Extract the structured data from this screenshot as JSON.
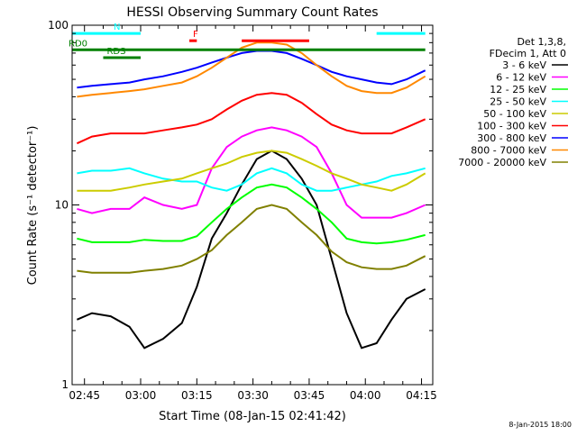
{
  "chart_data": {
    "type": "line",
    "title": "HESSI Observing Summary Count Rates",
    "xlabel": "Start Time (08-Jan-15 02:41:42)",
    "ylabel": "Count Rate (s⁻¹ detector⁻¹)",
    "y_scale": "log",
    "ylim": [
      1,
      100
    ],
    "xlim": [
      "02:41:42",
      "04:18:00"
    ],
    "x_ticks": [
      "02:45",
      "03:00",
      "03:15",
      "03:30",
      "03:45",
      "04:00",
      "04:15"
    ],
    "y_ticks": [
      "1",
      "10",
      "100"
    ],
    "legend_position": "top-right",
    "legend_header": [
      "Det 1,3,8,",
      "FDecim 1, Att 0"
    ],
    "grid": false,
    "series": [
      {
        "name": "3 - 6 keV",
        "color": "#000000",
        "x": [
          "02:43",
          "02:47",
          "02:52",
          "02:57",
          "03:01",
          "03:06",
          "03:11",
          "03:15",
          "03:19",
          "03:23",
          "03:27",
          "03:31",
          "03:35",
          "03:39",
          "03:43",
          "03:47",
          "03:51",
          "03:55",
          "03:59",
          "04:03",
          "04:07",
          "04:11",
          "04:16"
        ],
        "values": [
          2.3,
          2.5,
          2.4,
          2.1,
          1.6,
          1.8,
          2.2,
          3.5,
          6.5,
          9,
          13,
          18,
          20,
          18,
          14,
          10,
          5,
          2.5,
          1.6,
          1.7,
          2.3,
          3,
          3.4
        ]
      },
      {
        "name": "6 - 12 keV",
        "color": "#ff00ff",
        "x": [
          "02:43",
          "02:47",
          "02:52",
          "02:57",
          "03:01",
          "03:06",
          "03:11",
          "03:15",
          "03:19",
          "03:23",
          "03:27",
          "03:31",
          "03:35",
          "03:39",
          "03:43",
          "03:47",
          "03:51",
          "03:55",
          "03:59",
          "04:03",
          "04:07",
          "04:11",
          "04:16"
        ],
        "values": [
          9.5,
          9,
          9.5,
          9.5,
          11,
          10,
          9.5,
          10,
          16,
          21,
          24,
          26,
          27,
          26,
          24,
          21,
          15,
          10,
          8.5,
          8.5,
          8.5,
          9,
          10
        ]
      },
      {
        "name": "12 - 25 keV",
        "color": "#00ff00",
        "x": [
          "02:43",
          "02:47",
          "02:52",
          "02:57",
          "03:01",
          "03:06",
          "03:11",
          "03:15",
          "03:19",
          "03:23",
          "03:27",
          "03:31",
          "03:35",
          "03:39",
          "03:43",
          "03:47",
          "03:51",
          "03:55",
          "03:59",
          "04:03",
          "04:07",
          "04:11",
          "04:16"
        ],
        "values": [
          6.5,
          6.2,
          6.2,
          6.2,
          6.4,
          6.3,
          6.3,
          6.7,
          8,
          9.5,
          11,
          12.5,
          13,
          12.5,
          11,
          9.5,
          8,
          6.5,
          6.2,
          6.1,
          6.2,
          6.4,
          6.8
        ]
      },
      {
        "name": "25 - 50 keV",
        "color": "#00ffff",
        "x": [
          "02:43",
          "02:47",
          "02:52",
          "02:57",
          "03:01",
          "03:06",
          "03:11",
          "03:15",
          "03:19",
          "03:23",
          "03:27",
          "03:31",
          "03:35",
          "03:39",
          "03:43",
          "03:47",
          "03:51",
          "03:55",
          "03:59",
          "04:03",
          "04:07",
          "04:11",
          "04:16"
        ],
        "values": [
          15,
          15.5,
          15.5,
          16,
          15,
          14,
          13.5,
          13.5,
          12.5,
          12,
          13,
          15,
          16,
          15,
          13,
          12,
          12,
          12.5,
          13,
          13.5,
          14.5,
          15,
          16
        ]
      },
      {
        "name": "50 - 100 keV",
        "color": "#cccc00",
        "x": [
          "02:43",
          "02:47",
          "02:52",
          "02:57",
          "03:01",
          "03:06",
          "03:11",
          "03:15",
          "03:19",
          "03:23",
          "03:27",
          "03:31",
          "03:35",
          "03:39",
          "03:43",
          "03:47",
          "03:51",
          "03:55",
          "03:59",
          "04:03",
          "04:07",
          "04:11",
          "04:16"
        ],
        "values": [
          12,
          12,
          12,
          12.5,
          13,
          13.5,
          14,
          15,
          16,
          17,
          18.5,
          19.5,
          20,
          19.5,
          18,
          16.5,
          15,
          14,
          13,
          12.5,
          12,
          13,
          15
        ]
      },
      {
        "name": "100 - 300 keV",
        "color": "#ff0000",
        "x": [
          "02:43",
          "02:47",
          "02:52",
          "02:57",
          "03:01",
          "03:06",
          "03:11",
          "03:15",
          "03:19",
          "03:23",
          "03:27",
          "03:31",
          "03:35",
          "03:39",
          "03:43",
          "03:47",
          "03:51",
          "03:55",
          "03:59",
          "04:03",
          "04:07",
          "04:11",
          "04:16"
        ],
        "values": [
          22,
          24,
          25,
          25,
          25,
          26,
          27,
          28,
          30,
          34,
          38,
          41,
          42,
          41,
          37,
          32,
          28,
          26,
          25,
          25,
          25,
          27,
          30
        ]
      },
      {
        "name": "300 - 800 keV",
        "color": "#0000ff",
        "x": [
          "02:43",
          "02:47",
          "02:52",
          "02:57",
          "03:01",
          "03:06",
          "03:11",
          "03:15",
          "03:19",
          "03:23",
          "03:27",
          "03:31",
          "03:35",
          "03:39",
          "03:43",
          "03:47",
          "03:51",
          "03:55",
          "03:59",
          "04:03",
          "04:07",
          "04:11",
          "04:16"
        ],
        "values": [
          45,
          46,
          47,
          48,
          50,
          52,
          55,
          58,
          62,
          66,
          70,
          72,
          72,
          70,
          65,
          60,
          55,
          52,
          50,
          48,
          47,
          50,
          56
        ]
      },
      {
        "name": "800 - 7000 keV",
        "color": "#ff8800",
        "x": [
          "02:43",
          "02:47",
          "02:52",
          "02:57",
          "03:01",
          "03:06",
          "03:11",
          "03:15",
          "03:19",
          "03:23",
          "03:27",
          "03:31",
          "03:35",
          "03:39",
          "03:43",
          "03:47",
          "03:51",
          "03:55",
          "03:59",
          "04:03",
          "04:07",
          "04:11",
          "04:16"
        ],
        "values": [
          40,
          41,
          42,
          43,
          44,
          46,
          48,
          52,
          58,
          66,
          75,
          80,
          80,
          78,
          70,
          60,
          52,
          46,
          43,
          42,
          42,
          45,
          52
        ]
      },
      {
        "name": "7000 - 20000 keV",
        "color": "#808000",
        "x": [
          "02:43",
          "02:47",
          "02:52",
          "02:57",
          "03:01",
          "03:06",
          "03:11",
          "03:15",
          "03:19",
          "03:23",
          "03:27",
          "03:31",
          "03:35",
          "03:39",
          "03:43",
          "03:47",
          "03:51",
          "03:55",
          "03:59",
          "04:03",
          "04:07",
          "04:11",
          "04:16"
        ],
        "values": [
          4.3,
          4.2,
          4.2,
          4.2,
          4.3,
          4.4,
          4.6,
          5.0,
          5.6,
          6.8,
          8,
          9.5,
          10,
          9.5,
          8,
          6.8,
          5.5,
          4.8,
          4.5,
          4.4,
          4.4,
          4.6,
          5.2
        ]
      }
    ],
    "annotations": [
      {
        "label": "N",
        "color": "#00ffff",
        "segments": [
          [
            "02:41:42",
            "03:00"
          ],
          [
            "04:03",
            "04:16"
          ]
        ],
        "y": 90
      },
      {
        "label": "F",
        "color": "#ff0000",
        "segments": [
          [
            "03:13",
            "03:15"
          ],
          [
            "03:27",
            "03:45"
          ]
        ],
        "y": 82
      },
      {
        "label": "RD0",
        "color": "#008000",
        "segments": [
          [
            "02:41:42",
            "04:16"
          ]
        ],
        "y": 73
      },
      {
        "label": "RDS",
        "color": "#008000",
        "segments": [
          [
            "02:50",
            "03:00"
          ]
        ],
        "y": 66
      }
    ],
    "footer": "8-Jan-2015 18:00"
  }
}
